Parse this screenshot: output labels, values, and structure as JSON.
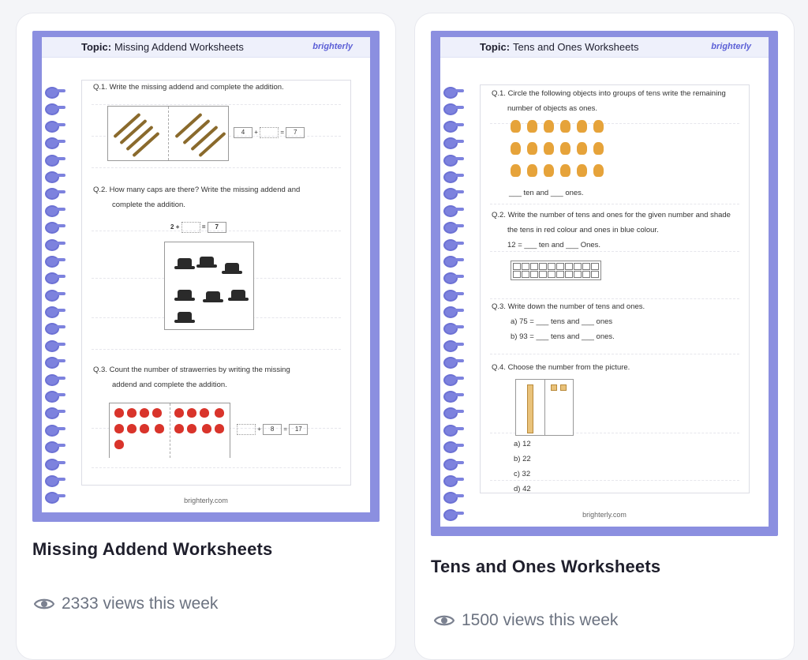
{
  "cards": [
    {
      "title": "Missing Addend Worksheets",
      "views": "2333 views this week",
      "sheet": {
        "topic_label": "Topic:",
        "topic": "Missing Addend Worksheets",
        "logo": "brighterly",
        "footer": "brighterly.com",
        "q1": "Q.1.  Write the missing addend and complete the addition.",
        "q1_vals": [
          "4",
          "+",
          "=",
          "7"
        ],
        "q2a": "Q.2.  How many caps are there? Write the missing addend and",
        "q2b": "complete the addition.",
        "q2_vals": [
          "2",
          "+",
          "=",
          "7"
        ],
        "q3a": "Q.3.  Count the number of strawerries by writing the missing",
        "q3b": "addend and complete the addition.",
        "q3_vals": [
          "+",
          "8",
          "=",
          "17"
        ]
      }
    },
    {
      "title": "Tens and Ones Worksheets",
      "views": "1500 views this week",
      "sheet": {
        "topic_label": "Topic:",
        "topic": "Tens and Ones Worksheets",
        "logo": "brighterly",
        "footer": "brighterly.com",
        "q1a": "Q.1. Circle the following objects into groups of tens write the remaining",
        "q1b": "number of objects as ones.",
        "q1c": "___ ten and ___ ones.",
        "q2a": "Q.2.  Write the number of tens and ones for the given number and shade",
        "q2b": "the tens in red colour and ones in blue colour.",
        "q2c": "12 = ___ ten and ___ Ones.",
        "q3a": "Q.3.  Write down the number of tens and ones.",
        "q3b": "a) 75 = ___ tens and ___ ones",
        "q3c": "b) 93 = ___ tens and ___ ones.",
        "q4a": "Q.4.  Choose the number from the picture.",
        "q4_opts": [
          "a) 12",
          "b) 22",
          "c) 32",
          "d) 42"
        ]
      }
    }
  ],
  "icons": {
    "views": "eye-icon"
  },
  "colors": {
    "frame": "#8b8fe0",
    "text": "#1f1f2c",
    "muted": "#6b7280"
  }
}
